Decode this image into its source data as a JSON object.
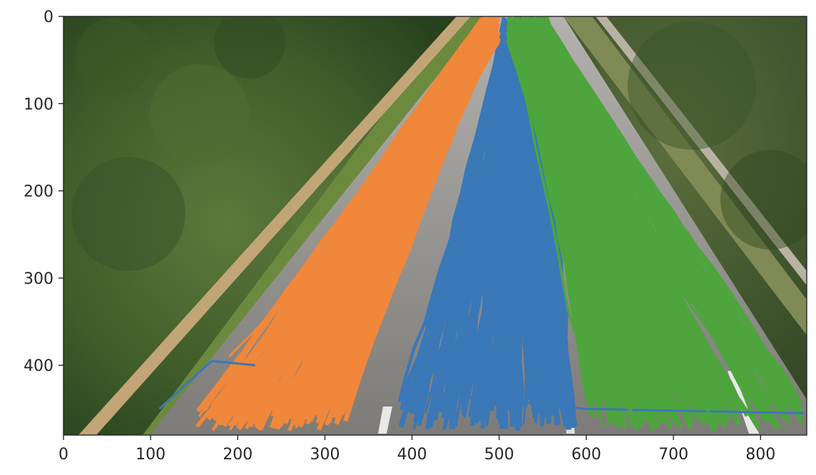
{
  "chart_data": {
    "type": "line",
    "title": "",
    "xlabel": "",
    "ylabel": "",
    "xlim": [
      0,
      853
    ],
    "ylim": [
      480,
      0
    ],
    "x_ticks": [
      "0",
      "100",
      "200",
      "300",
      "400",
      "500",
      "600",
      "700",
      "800"
    ],
    "y_ticks": [
      "0",
      "100",
      "200",
      "300",
      "400"
    ],
    "grid": false,
    "legend": "none",
    "background": "photo of a two-lane road between dense trees, viewed from above",
    "series": [
      {
        "color": "#f0873a",
        "lane": "left",
        "band_top": [
          475,
          505
        ],
        "band_bottom": [
          155,
          325
        ],
        "sample_trajectory": [
          [
            490,
            0
          ],
          [
            420,
            170
          ],
          [
            330,
            330
          ],
          [
            240,
            470
          ]
        ]
      },
      {
        "color": "#3a78b8",
        "lane": "center",
        "band_top": [
          495,
          560
        ],
        "band_bottom": [
          385,
          590
        ],
        "sample_trajectory": [
          [
            525,
            0
          ],
          [
            500,
            200
          ],
          [
            470,
            360
          ],
          [
            450,
            470
          ]
        ]
      },
      {
        "color": "#4ea53d",
        "lane": "right",
        "band_top": [
          500,
          565
        ],
        "band_bottom": [
          600,
          850
        ],
        "sample_trajectory": [
          [
            535,
            0
          ],
          [
            600,
            180
          ],
          [
            700,
            350
          ],
          [
            800,
            470
          ]
        ]
      }
    ]
  }
}
